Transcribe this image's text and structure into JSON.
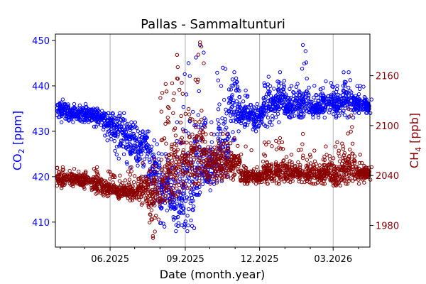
{
  "chart_data": {
    "type": "scatter",
    "title": "Pallas - Sammaltunturi",
    "xlabel": "Date (month.year)",
    "xlim": [
      "2025-03-26",
      "2026-04-15"
    ],
    "x_ticks": [
      {
        "date": "2025-06-01",
        "label": "06.2025"
      },
      {
        "date": "2025-09-01",
        "label": "09.2025"
      },
      {
        "date": "2025-12-01",
        "label": "12.2025"
      },
      {
        "date": "2026-03-01",
        "label": "03.2026"
      }
    ],
    "x_minor_ticks": [
      "2025-04-01",
      "2025-05-01",
      "2025-07-01",
      "2025-08-01",
      "2025-10-01",
      "2025-11-01",
      "2026-01-01",
      "2026-02-01",
      "2026-04-01"
    ],
    "grid": "vertical-major",
    "left_axis": {
      "label_base": "CO",
      "label_sub": "2",
      "label_unit": " [ppm]",
      "color": "#0000ff",
      "ylim": [
        404.5,
        451.4
      ],
      "ticks": [
        410,
        420,
        430,
        440,
        450
      ]
    },
    "right_axis": {
      "label_base": "CH",
      "label_sub": "4",
      "label_unit": " [ppb]",
      "color": "#8b0000",
      "ylim": [
        1954,
        2210
      ],
      "ticks": [
        1980,
        2040,
        2100,
        2160
      ]
    },
    "series": [
      {
        "name": "CO2",
        "axis": "left",
        "color": "#0000ff",
        "marker": "open-circle",
        "note": "biweekly [low, mid, high] ranges of dense hourly points",
        "points": [
          [
            "2025-03-28",
            432,
            434.5,
            437
          ],
          [
            "2025-04-11",
            432,
            434,
            436
          ],
          [
            "2025-04-25",
            432,
            434,
            436
          ],
          [
            "2025-05-09",
            431,
            433.5,
            435
          ],
          [
            "2025-05-23",
            428,
            432,
            434
          ],
          [
            "2025-06-06",
            424,
            430,
            434
          ],
          [
            "2025-06-20",
            422,
            428,
            432
          ],
          [
            "2025-07-04",
            420,
            426,
            430
          ],
          [
            "2025-07-18",
            414,
            421,
            428
          ],
          [
            "2025-08-01",
            409,
            417,
            425
          ],
          [
            "2025-08-15",
            408,
            415,
            432
          ],
          [
            "2025-08-29",
            408,
            418,
            445
          ],
          [
            "2025-09-12",
            416,
            424,
            449
          ],
          [
            "2025-09-26",
            417,
            422,
            432
          ],
          [
            "2025-10-10",
            419,
            428,
            444
          ],
          [
            "2025-10-24",
            428,
            436,
            443
          ],
          [
            "2025-11-07",
            431,
            434,
            439
          ],
          [
            "2025-11-21",
            430,
            433,
            436
          ],
          [
            "2025-12-05",
            431,
            436,
            442
          ],
          [
            "2025-12-19",
            432,
            437,
            443
          ],
          [
            "2026-01-02",
            433,
            436,
            440
          ],
          [
            "2026-01-16",
            433,
            436,
            449
          ],
          [
            "2026-01-30",
            433,
            435,
            440
          ],
          [
            "2026-02-13",
            433,
            436,
            441
          ],
          [
            "2026-02-27",
            433,
            436,
            440
          ],
          [
            "2026-03-13",
            433,
            437,
            443
          ],
          [
            "2026-03-27",
            434,
            436,
            440
          ],
          [
            "2026-04-10",
            434,
            435.5,
            437
          ]
        ]
      },
      {
        "name": "CH4",
        "axis": "right",
        "color": "#8b0000",
        "marker": "open-circle",
        "note": "biweekly [low, mid, high] ranges of dense hourly points",
        "points": [
          [
            "2025-03-28",
            2025,
            2035,
            2050
          ],
          [
            "2025-04-11",
            2027,
            2036,
            2048
          ],
          [
            "2025-04-25",
            2024,
            2034,
            2045
          ],
          [
            "2025-05-09",
            2018,
            2030,
            2050
          ],
          [
            "2025-05-23",
            2015,
            2025,
            2045
          ],
          [
            "2025-06-06",
            2012,
            2022,
            2040
          ],
          [
            "2025-06-20",
            2010,
            2020,
            2050
          ],
          [
            "2025-07-04",
            2005,
            2025,
            2055
          ],
          [
            "2025-07-18",
            1965,
            2015,
            2060
          ],
          [
            "2025-08-01",
            2010,
            2040,
            2150
          ],
          [
            "2025-08-15",
            2015,
            2050,
            2185
          ],
          [
            "2025-08-29",
            2025,
            2060,
            2120
          ],
          [
            "2025-09-12",
            2030,
            2070,
            2200
          ],
          [
            "2025-09-26",
            2030,
            2055,
            2090
          ],
          [
            "2025-10-10",
            2035,
            2055,
            2090
          ],
          [
            "2025-10-24",
            2035,
            2055,
            2085
          ],
          [
            "2025-11-07",
            2030,
            2040,
            2075
          ],
          [
            "2025-11-21",
            2030,
            2038,
            2050
          ],
          [
            "2025-12-05",
            2030,
            2045,
            2080
          ],
          [
            "2025-12-19",
            2030,
            2045,
            2085
          ],
          [
            "2026-01-02",
            2032,
            2045,
            2065
          ],
          [
            "2026-01-16",
            2032,
            2042,
            2090
          ],
          [
            "2026-01-30",
            2030,
            2042,
            2070
          ],
          [
            "2026-02-13",
            2030,
            2045,
            2075
          ],
          [
            "2026-02-27",
            2028,
            2042,
            2080
          ],
          [
            "2026-03-13",
            2030,
            2050,
            2120
          ],
          [
            "2026-03-27",
            2030,
            2042,
            2065
          ],
          [
            "2026-04-10",
            2035,
            2042,
            2050
          ]
        ]
      }
    ]
  }
}
